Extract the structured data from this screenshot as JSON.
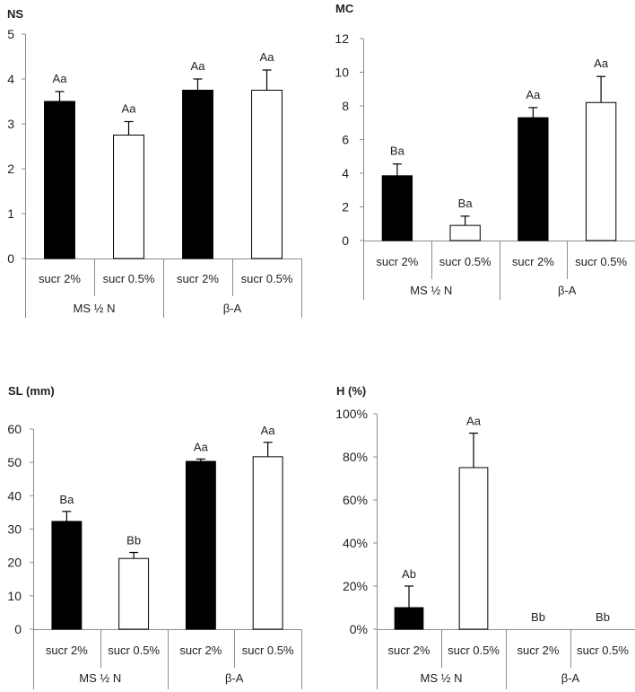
{
  "chart_data": [
    {
      "type": "bar",
      "title": "NS",
      "categories": [
        "sucr 2%",
        "sucr 0.5%",
        "sucr 2%",
        "sucr 0.5%"
      ],
      "groups": [
        {
          "label": "MS ½ N",
          "categories": [
            0,
            1
          ]
        },
        {
          "label": "β-A",
          "categories": [
            2,
            3
          ]
        }
      ],
      "values": [
        3.5,
        2.75,
        3.75,
        3.75
      ],
      "errors": [
        0.22,
        0.3,
        0.25,
        0.45
      ],
      "fills": [
        "#000000",
        "#ffffff",
        "#000000",
        "#ffffff"
      ],
      "significance": [
        "Aa",
        "Aa",
        "Aa",
        "Aa"
      ],
      "ylim": [
        0,
        5
      ],
      "yticks": [
        0,
        1,
        2,
        3,
        4,
        5
      ],
      "ytick_labels": [
        "0",
        "1",
        "2",
        "3",
        "4",
        "5"
      ],
      "xlabel": "",
      "ylabel": ""
    },
    {
      "type": "bar",
      "title": "MC",
      "categories": [
        "sucr 2%",
        "sucr 0.5%",
        "sucr 2%",
        "sucr 0.5%"
      ],
      "groups": [
        {
          "label": "MS ½ N",
          "categories": [
            0,
            1
          ]
        },
        {
          "label": "β-A",
          "categories": [
            2,
            3
          ]
        }
      ],
      "values": [
        3.85,
        0.9,
        7.3,
        8.2
      ],
      "errors": [
        0.7,
        0.55,
        0.6,
        1.55
      ],
      "fills": [
        "#000000",
        "#ffffff",
        "#000000",
        "#ffffff"
      ],
      "significance": [
        "Ba",
        "Ba",
        "Aa",
        "Aa"
      ],
      "ylim": [
        0,
        12
      ],
      "yticks": [
        0,
        2,
        4,
        6,
        8,
        10,
        12
      ],
      "ytick_labels": [
        "0",
        "2",
        "4",
        "6",
        "8",
        "10",
        "12"
      ],
      "xlabel": "",
      "ylabel": ""
    },
    {
      "type": "bar",
      "title": "SL (mm)",
      "categories": [
        "sucr 2%",
        "sucr 0.5%",
        "sucr 2%",
        "sucr 0.5%"
      ],
      "groups": [
        {
          "label": "MS ½ N",
          "categories": [
            0,
            1
          ]
        },
        {
          "label": "β-A",
          "categories": [
            2,
            3
          ]
        }
      ],
      "values": [
        32.3,
        21.2,
        50.3,
        51.7
      ],
      "errors": [
        3.0,
        1.8,
        0.7,
        4.3
      ],
      "fills": [
        "#000000",
        "#ffffff",
        "#000000",
        "#ffffff"
      ],
      "significance": [
        "Ba",
        "Bb",
        "Aa",
        "Aa"
      ],
      "ylim": [
        0,
        60
      ],
      "yticks": [
        0,
        10,
        20,
        30,
        40,
        50,
        60
      ],
      "ytick_labels": [
        "0",
        "10",
        "20",
        "30",
        "40",
        "50",
        "60"
      ],
      "xlabel": "",
      "ylabel": ""
    },
    {
      "type": "bar",
      "title": "H (%)",
      "categories": [
        "sucr 2%",
        "sucr 0.5%",
        "sucr 2%",
        "sucr 0.5%"
      ],
      "groups": [
        {
          "label": "MS ½ N",
          "categories": [
            0,
            1
          ]
        },
        {
          "label": "β-A",
          "categories": [
            2,
            3
          ]
        }
      ],
      "values": [
        10,
        75,
        0,
        0
      ],
      "errors": [
        10,
        16,
        0,
        0
      ],
      "fills": [
        "#000000",
        "#ffffff",
        "#000000",
        "#ffffff"
      ],
      "significance": [
        "Ab",
        "Aa",
        "Bb",
        "Bb"
      ],
      "ylim": [
        0,
        100
      ],
      "yticks": [
        0,
        20,
        40,
        60,
        80,
        100
      ],
      "ytick_labels": [
        "0%",
        "20%",
        "40%",
        "60%",
        "80%",
        "100%"
      ],
      "xlabel": "",
      "ylabel": ""
    }
  ]
}
